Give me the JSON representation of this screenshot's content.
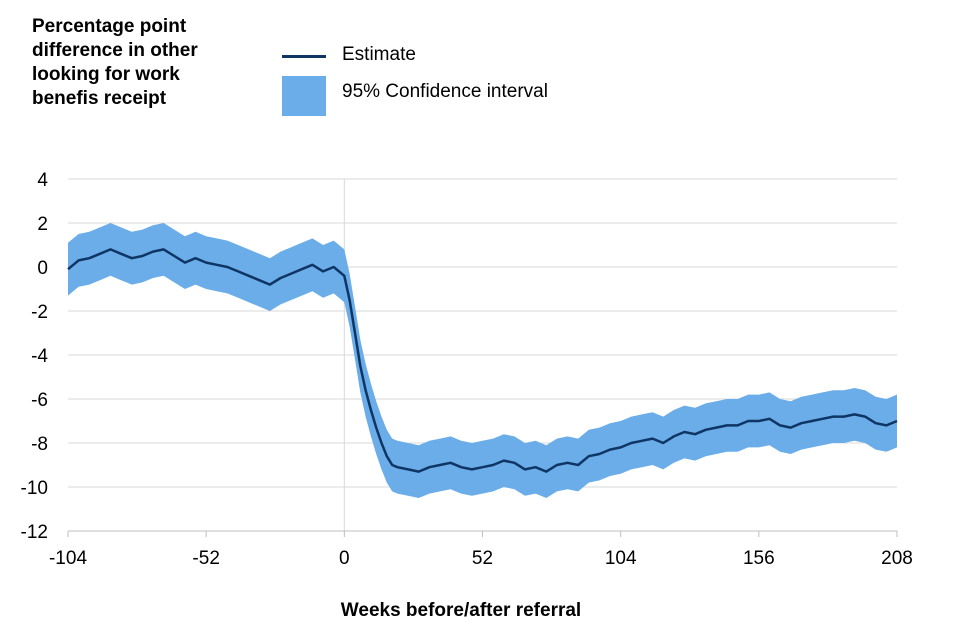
{
  "chart_data": {
    "type": "line",
    "title": "",
    "ylabel": "Percentage point difference in other looking for work benefis receipt",
    "xlabel": "Weeks before/after referral",
    "xlim": [
      -104,
      208
    ],
    "ylim": [
      -12,
      4
    ],
    "xticks": [
      -104,
      -52,
      0,
      52,
      104,
      156,
      208
    ],
    "yticks": [
      4,
      2,
      0,
      -2,
      -4,
      -6,
      -8,
      -10,
      -12
    ],
    "legend": [
      {
        "name": "Estimate",
        "type": "line",
        "color": "#0f3564"
      },
      {
        "name": "95% Confidence interval",
        "type": "band",
        "color": "#6aade8"
      }
    ],
    "series": [
      {
        "name": "Estimate",
        "x": [
          -104,
          -100,
          -96,
          -92,
          -88,
          -84,
          -80,
          -76,
          -72,
          -68,
          -64,
          -60,
          -56,
          -52,
          -48,
          -44,
          -40,
          -36,
          -32,
          -28,
          -24,
          -20,
          -16,
          -12,
          -8,
          -4,
          0,
          2,
          4,
          6,
          8,
          10,
          12,
          14,
          16,
          18,
          20,
          24,
          28,
          32,
          36,
          40,
          44,
          48,
          52,
          56,
          60,
          64,
          68,
          72,
          76,
          80,
          84,
          88,
          92,
          96,
          100,
          104,
          108,
          112,
          116,
          120,
          124,
          128,
          132,
          136,
          140,
          144,
          148,
          152,
          156,
          160,
          164,
          168,
          172,
          176,
          180,
          184,
          188,
          192,
          196,
          200,
          204,
          208
        ],
        "y": [
          -0.1,
          0.3,
          0.4,
          0.6,
          0.8,
          0.6,
          0.4,
          0.5,
          0.7,
          0.8,
          0.5,
          0.2,
          0.4,
          0.2,
          0.1,
          0.0,
          -0.2,
          -0.4,
          -0.6,
          -0.8,
          -0.5,
          -0.3,
          -0.1,
          0.1,
          -0.2,
          0.0,
          -0.4,
          -1.5,
          -3.0,
          -4.5,
          -5.6,
          -6.5,
          -7.3,
          -8.0,
          -8.6,
          -9.0,
          -9.1,
          -9.2,
          -9.3,
          -9.1,
          -9.0,
          -8.9,
          -9.1,
          -9.2,
          -9.1,
          -9.0,
          -8.8,
          -8.9,
          -9.2,
          -9.1,
          -9.3,
          -9.0,
          -8.9,
          -9.0,
          -8.6,
          -8.5,
          -8.3,
          -8.2,
          -8.0,
          -7.9,
          -7.8,
          -8.0,
          -7.7,
          -7.5,
          -7.6,
          -7.4,
          -7.3,
          -7.2,
          -7.2,
          -7.0,
          -7.0,
          -6.9,
          -7.2,
          -7.3,
          -7.1,
          -7.0,
          -6.9,
          -6.8,
          -6.8,
          -6.7,
          -6.8,
          -7.1,
          -7.2,
          -7.0
        ],
        "lower": [
          -1.3,
          -0.9,
          -0.8,
          -0.6,
          -0.4,
          -0.6,
          -0.8,
          -0.7,
          -0.5,
          -0.4,
          -0.7,
          -1.0,
          -0.8,
          -1.0,
          -1.1,
          -1.2,
          -1.4,
          -1.6,
          -1.8,
          -2.0,
          -1.7,
          -1.5,
          -1.3,
          -1.1,
          -1.4,
          -1.2,
          -1.6,
          -2.7,
          -4.2,
          -5.7,
          -6.8,
          -7.7,
          -8.5,
          -9.2,
          -9.8,
          -10.2,
          -10.3,
          -10.4,
          -10.5,
          -10.3,
          -10.2,
          -10.1,
          -10.3,
          -10.4,
          -10.3,
          -10.2,
          -10.0,
          -10.1,
          -10.4,
          -10.3,
          -10.5,
          -10.2,
          -10.1,
          -10.2,
          -9.8,
          -9.7,
          -9.5,
          -9.4,
          -9.2,
          -9.1,
          -9.0,
          -9.2,
          -8.9,
          -8.7,
          -8.8,
          -8.6,
          -8.5,
          -8.4,
          -8.4,
          -8.2,
          -8.2,
          -8.1,
          -8.4,
          -8.5,
          -8.3,
          -8.2,
          -8.1,
          -8.0,
          -8.0,
          -7.9,
          -8.0,
          -8.3,
          -8.4,
          -8.2
        ],
        "upper": [
          1.1,
          1.5,
          1.6,
          1.8,
          2.0,
          1.8,
          1.6,
          1.7,
          1.9,
          2.0,
          1.7,
          1.4,
          1.6,
          1.4,
          1.3,
          1.2,
          1.0,
          0.8,
          0.6,
          0.4,
          0.7,
          0.9,
          1.1,
          1.3,
          1.0,
          1.2,
          0.8,
          -0.3,
          -1.8,
          -3.3,
          -4.4,
          -5.3,
          -6.1,
          -6.8,
          -7.4,
          -7.8,
          -7.9,
          -8.0,
          -8.1,
          -7.9,
          -7.8,
          -7.7,
          -7.9,
          -8.0,
          -7.9,
          -7.8,
          -7.6,
          -7.7,
          -8.0,
          -7.9,
          -8.1,
          -7.8,
          -7.7,
          -7.8,
          -7.4,
          -7.3,
          -7.1,
          -7.0,
          -6.8,
          -6.7,
          -6.6,
          -6.8,
          -6.5,
          -6.3,
          -6.4,
          -6.2,
          -6.1,
          -6.0,
          -6.0,
          -5.8,
          -5.8,
          -5.7,
          -6.0,
          -6.1,
          -5.9,
          -5.8,
          -5.7,
          -5.6,
          -5.6,
          -5.5,
          -5.6,
          -5.9,
          -6.0,
          -5.8
        ]
      }
    ]
  }
}
